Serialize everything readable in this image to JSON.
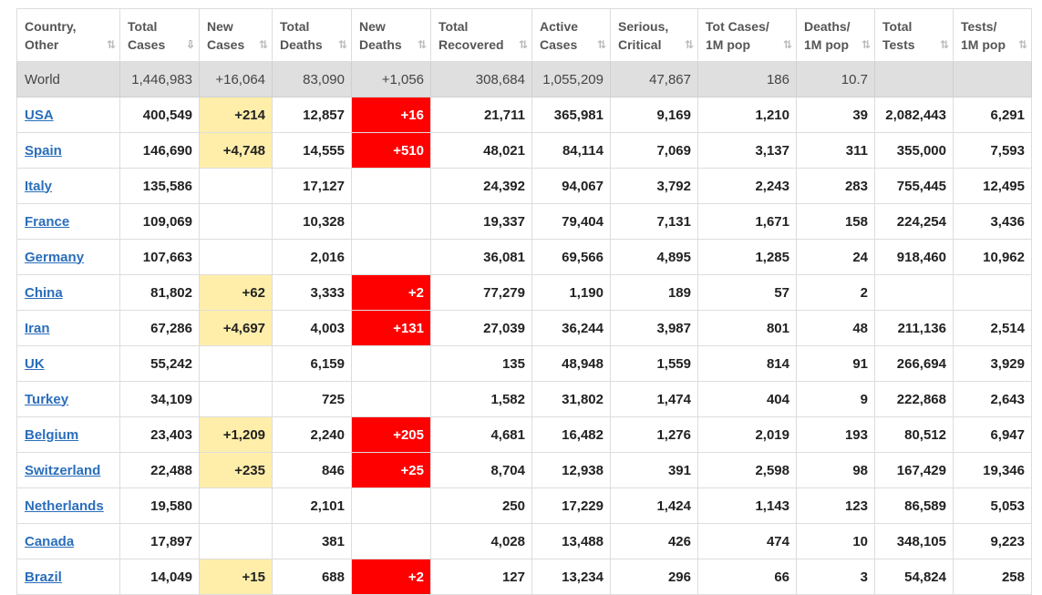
{
  "headers": [
    {
      "key": "country",
      "label": "Country, Other",
      "sort": "⇅"
    },
    {
      "key": "total_cases",
      "label": "Total Cases",
      "sort": "⇩"
    },
    {
      "key": "new_cases",
      "label": "New Cases",
      "sort": "⇅"
    },
    {
      "key": "total_deaths",
      "label": "Total Deaths",
      "sort": "⇅"
    },
    {
      "key": "new_deaths",
      "label": "New Deaths",
      "sort": "⇅"
    },
    {
      "key": "total_recovered",
      "label": "Total Recovered",
      "sort": "⇅"
    },
    {
      "key": "active_cases",
      "label": "Active Cases",
      "sort": "⇅"
    },
    {
      "key": "serious_critical",
      "label": "Serious, Critical",
      "sort": "⇅"
    },
    {
      "key": "tot_cases_1m",
      "label": "Tot Cases/ 1M pop",
      "sort": "⇅"
    },
    {
      "key": "deaths_1m",
      "label": "Deaths/ 1M pop",
      "sort": "⇅"
    },
    {
      "key": "total_tests",
      "label": "Total Tests",
      "sort": "⇅"
    },
    {
      "key": "tests_1m",
      "label": "Tests/ 1M pop",
      "sort": "⇅"
    }
  ],
  "world": [
    "World",
    "1,446,983",
    "+16,064",
    "83,090",
    "+1,056",
    "308,684",
    "1,055,209",
    "47,867",
    "186",
    "10.7",
    "",
    ""
  ],
  "rows": [
    [
      "USA",
      "400,549",
      "+214",
      "12,857",
      "+16",
      "21,711",
      "365,981",
      "9,169",
      "1,210",
      "39",
      "2,082,443",
      "6,291"
    ],
    [
      "Spain",
      "146,690",
      "+4,748",
      "14,555",
      "+510",
      "48,021",
      "84,114",
      "7,069",
      "3,137",
      "311",
      "355,000",
      "7,593"
    ],
    [
      "Italy",
      "135,586",
      "",
      "17,127",
      "",
      "24,392",
      "94,067",
      "3,792",
      "2,243",
      "283",
      "755,445",
      "12,495"
    ],
    [
      "France",
      "109,069",
      "",
      "10,328",
      "",
      "19,337",
      "79,404",
      "7,131",
      "1,671",
      "158",
      "224,254",
      "3,436"
    ],
    [
      "Germany",
      "107,663",
      "",
      "2,016",
      "",
      "36,081",
      "69,566",
      "4,895",
      "1,285",
      "24",
      "918,460",
      "10,962"
    ],
    [
      "China",
      "81,802",
      "+62",
      "3,333",
      "+2",
      "77,279",
      "1,190",
      "189",
      "57",
      "2",
      "",
      ""
    ],
    [
      "Iran",
      "67,286",
      "+4,697",
      "4,003",
      "+131",
      "27,039",
      "36,244",
      "3,987",
      "801",
      "48",
      "211,136",
      "2,514"
    ],
    [
      "UK",
      "55,242",
      "",
      "6,159",
      "",
      "135",
      "48,948",
      "1,559",
      "814",
      "91",
      "266,694",
      "3,929"
    ],
    [
      "Turkey",
      "34,109",
      "",
      "725",
      "",
      "1,582",
      "31,802",
      "1,474",
      "404",
      "9",
      "222,868",
      "2,643"
    ],
    [
      "Belgium",
      "23,403",
      "+1,209",
      "2,240",
      "+205",
      "4,681",
      "16,482",
      "1,276",
      "2,019",
      "193",
      "80,512",
      "6,947"
    ],
    [
      "Switzerland",
      "22,488",
      "+235",
      "846",
      "+25",
      "8,704",
      "12,938",
      "391",
      "2,598",
      "98",
      "167,429",
      "19,346"
    ],
    [
      "Netherlands",
      "19,580",
      "",
      "2,101",
      "",
      "250",
      "17,229",
      "1,424",
      "1,143",
      "123",
      "86,589",
      "5,053"
    ],
    [
      "Canada",
      "17,897",
      "",
      "381",
      "",
      "4,028",
      "13,488",
      "426",
      "474",
      "10",
      "348,105",
      "9,223"
    ],
    [
      "Brazil",
      "14,049",
      "+15",
      "688",
      "+2",
      "127",
      "13,234",
      "296",
      "66",
      "3",
      "54,824",
      "258"
    ]
  ],
  "colors": {
    "new_cases_highlight": "#ffeeaa",
    "new_deaths_highlight": "#ff0000",
    "link": "#2a6ebb",
    "world_row": "#dfdfdf"
  }
}
